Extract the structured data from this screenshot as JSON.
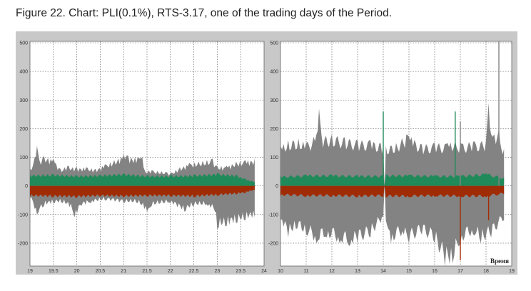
{
  "title": "Figure 22. Chart: PLI(0.1%), RTS-3.17, one of the trading days of the Period.",
  "colors": {
    "gray": "#838383",
    "green": "#218a5a",
    "red": "#a02c05",
    "grid": "#555555"
  },
  "chart_data": [
    {
      "type": "area",
      "xlim": [
        19,
        24
      ],
      "ylim": [
        -280,
        505
      ],
      "xticks": [
        "19",
        "19.5",
        "20",
        "20.5",
        "21",
        "21.5",
        "22",
        "22.5",
        "23",
        "23.5",
        "24"
      ],
      "yticks": [
        "500",
        "400",
        "300",
        "200",
        "100",
        "0",
        "-100",
        "-200"
      ],
      "xlabel": "",
      "series": [
        {
          "name": "gray-upper",
          "x": [
            19,
            19.1,
            19.15,
            19.2,
            19.3,
            19.5,
            19.65,
            19.8,
            20,
            20.2,
            20.4,
            20.6,
            20.8,
            21,
            21.1,
            21.3,
            21.4,
            21.45,
            21.6,
            21.9,
            22,
            22.2,
            22.4,
            22.6,
            22.9,
            23,
            23.2,
            23.4,
            23.6,
            23.8
          ],
          "values": [
            60,
            100,
            140,
            90,
            105,
            95,
            60,
            70,
            65,
            65,
            60,
            75,
            90,
            110,
            105,
            100,
            100,
            55,
            55,
            50,
            45,
            65,
            80,
            85,
            95,
            70,
            70,
            85,
            90,
            95
          ]
        },
        {
          "name": "green-upper",
          "x": [
            19,
            19.5,
            20,
            20.5,
            21,
            21.5,
            22,
            22.5,
            23,
            23.4,
            23.6,
            23.8
          ],
          "values": [
            40,
            42,
            38,
            40,
            45,
            38,
            38,
            40,
            45,
            40,
            25,
            15
          ]
        },
        {
          "name": "red-lower",
          "x": [
            19,
            19.5,
            20,
            20.5,
            21,
            21.5,
            22,
            22.5,
            23,
            23.4,
            23.6,
            23.8
          ],
          "values": [
            -38,
            -40,
            -42,
            -38,
            -40,
            -38,
            -38,
            -40,
            -35,
            -30,
            -25,
            -15
          ]
        },
        {
          "name": "gray-lower",
          "x": [
            19,
            19.1,
            19.15,
            19.3,
            19.5,
            19.7,
            19.9,
            19.95,
            20.1,
            20.3,
            20.6,
            21,
            21.3,
            21.5,
            21.6,
            22,
            22.3,
            22.5,
            22.8,
            22.95,
            23,
            23.2,
            23.4,
            23.6,
            23.8
          ],
          "values": [
            -40,
            -80,
            -100,
            -70,
            -60,
            -60,
            -80,
            -110,
            -70,
            -60,
            -50,
            -60,
            -60,
            -90,
            -70,
            -60,
            -90,
            -70,
            -70,
            -90,
            -150,
            -140,
            -130,
            -120,
            -110
          ]
        }
      ],
      "spikes": []
    },
    {
      "type": "area",
      "xlim": [
        10,
        19
      ],
      "ylim": [
        -280,
        505
      ],
      "xticks": [
        "10",
        "11",
        "12",
        "13",
        "14",
        "15",
        "16",
        "17",
        "18",
        "19"
      ],
      "yticks": [
        "500",
        "400",
        "300",
        "200",
        "100",
        "0",
        "-100",
        "-200"
      ],
      "xlabel": "Время",
      "series": [
        {
          "name": "gray-upper",
          "x": [
            10,
            10.3,
            10.7,
            11,
            11.4,
            11.5,
            11.6,
            12,
            12.5,
            13,
            13.5,
            13.9,
            14,
            14.05,
            14.1,
            14.5,
            14.9,
            15.1,
            15.5,
            16,
            16.5,
            16.8,
            17,
            17.5,
            18,
            18.1,
            18.2,
            18.5,
            18.7
          ],
          "values": [
            140,
            160,
            165,
            150,
            180,
            270,
            175,
            180,
            170,
            160,
            160,
            150,
            140,
            0,
            140,
            150,
            180,
            170,
            145,
            150,
            150,
            160,
            150,
            155,
            160,
            290,
            180,
            200,
            130
          ]
        },
        {
          "name": "green-upper",
          "x": [
            10,
            11,
            12,
            13,
            14,
            14.05,
            14.1,
            15,
            16,
            17,
            18,
            18.7
          ],
          "values": [
            35,
            40,
            40,
            38,
            38,
            0,
            40,
            40,
            38,
            38,
            45,
            30
          ]
        },
        {
          "name": "red-lower",
          "x": [
            10,
            11,
            12,
            13,
            14,
            14.05,
            14.1,
            15,
            16,
            17,
            18,
            18.7
          ],
          "values": [
            -35,
            -38,
            -38,
            -40,
            -38,
            0,
            -40,
            -40,
            -38,
            -40,
            -40,
            -30
          ]
        },
        {
          "name": "gray-lower",
          "x": [
            10,
            10.3,
            10.6,
            11,
            11.4,
            11.8,
            12.3,
            12.7,
            13,
            13.5,
            13.9,
            14,
            14.05,
            14.1,
            14.3,
            14.8,
            15,
            15.5,
            16,
            16.4,
            16.7,
            17,
            17.5,
            17.8,
            18.2,
            18.7
          ],
          "values": [
            -120,
            -180,
            -150,
            -170,
            -200,
            -180,
            -200,
            -210,
            -200,
            -180,
            -130,
            -110,
            0,
            -120,
            -200,
            -170,
            -200,
            -170,
            -200,
            -280,
            -270,
            -200,
            -170,
            -200,
            -180,
            -120
          ]
        }
      ],
      "spikes": [
        {
          "color": "green",
          "x": 14.0,
          "value": 260
        },
        {
          "color": "green",
          "x": 16.8,
          "value": 260
        },
        {
          "color": "gray",
          "x": 18.5,
          "value": 505
        },
        {
          "color": "red",
          "x": 17.0,
          "value": -260
        },
        {
          "color": "red",
          "x": 18.1,
          "value": -120
        },
        {
          "color": "gray",
          "x": 17.0,
          "value": 225
        }
      ]
    }
  ]
}
